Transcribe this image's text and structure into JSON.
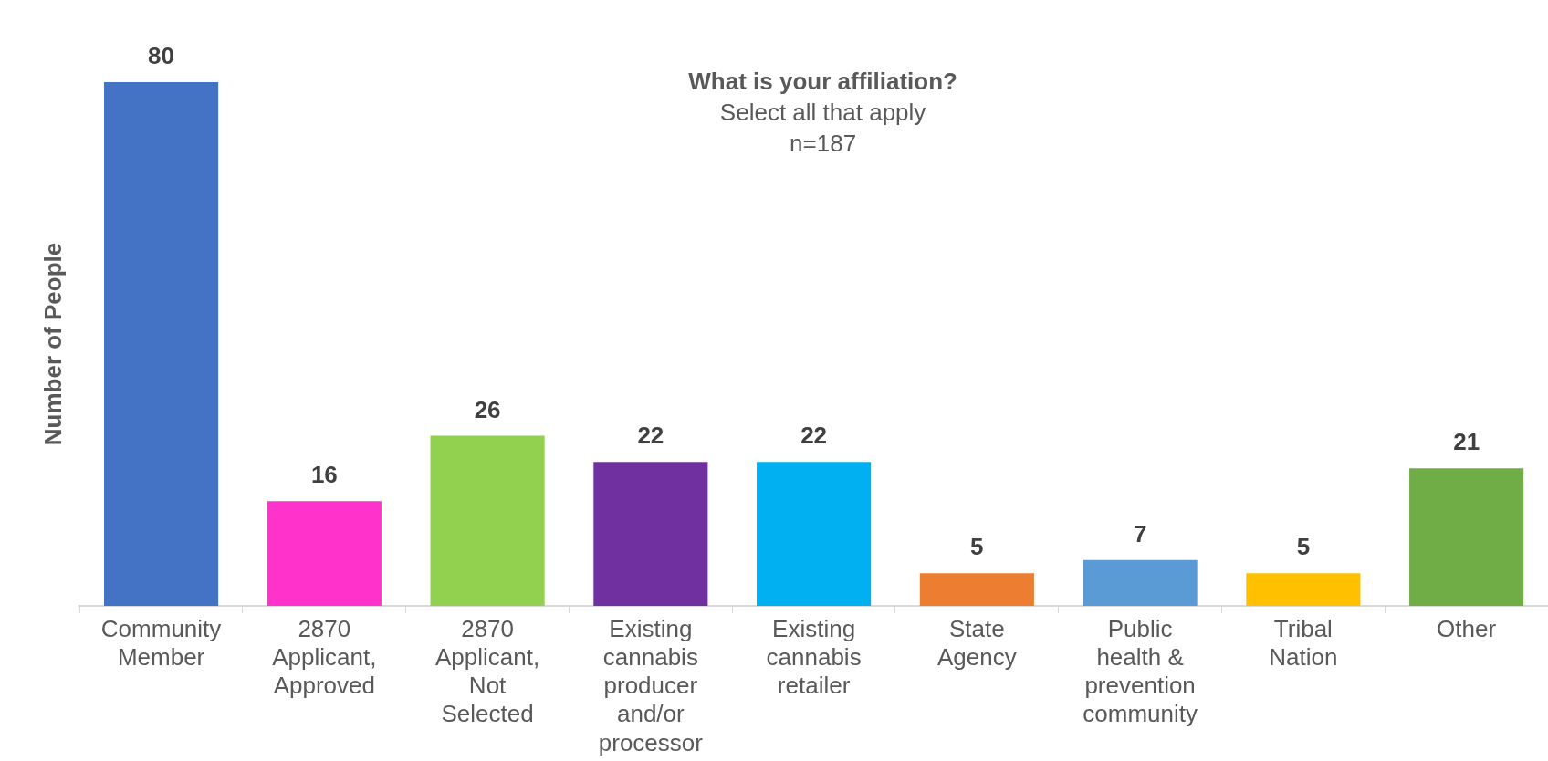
{
  "chart_data": {
    "type": "bar",
    "title": "What is your affiliation?",
    "subtitle": "Select all that apply",
    "annotations": [
      "n=187"
    ],
    "ylabel": "Number of People",
    "categories": [
      "Community Member",
      "2870 Applicant, Approved",
      "2870 Applicant, Not Selected",
      "Existing cannabis producer and/or processor",
      "Existing cannabis retailer",
      "State Agency",
      "Public health & prevention community",
      "Tribal Nation",
      "Other"
    ],
    "values": [
      80,
      16,
      26,
      22,
      22,
      5,
      7,
      5,
      21
    ],
    "colors": [
      "#4472c4",
      "#ff33cc",
      "#92d050",
      "#7030a0",
      "#00b0f0",
      "#ed7d31",
      "#5b9bd5",
      "#ffc000",
      "#70ad47"
    ],
    "data_labels": true,
    "grid": false,
    "legend": false
  }
}
